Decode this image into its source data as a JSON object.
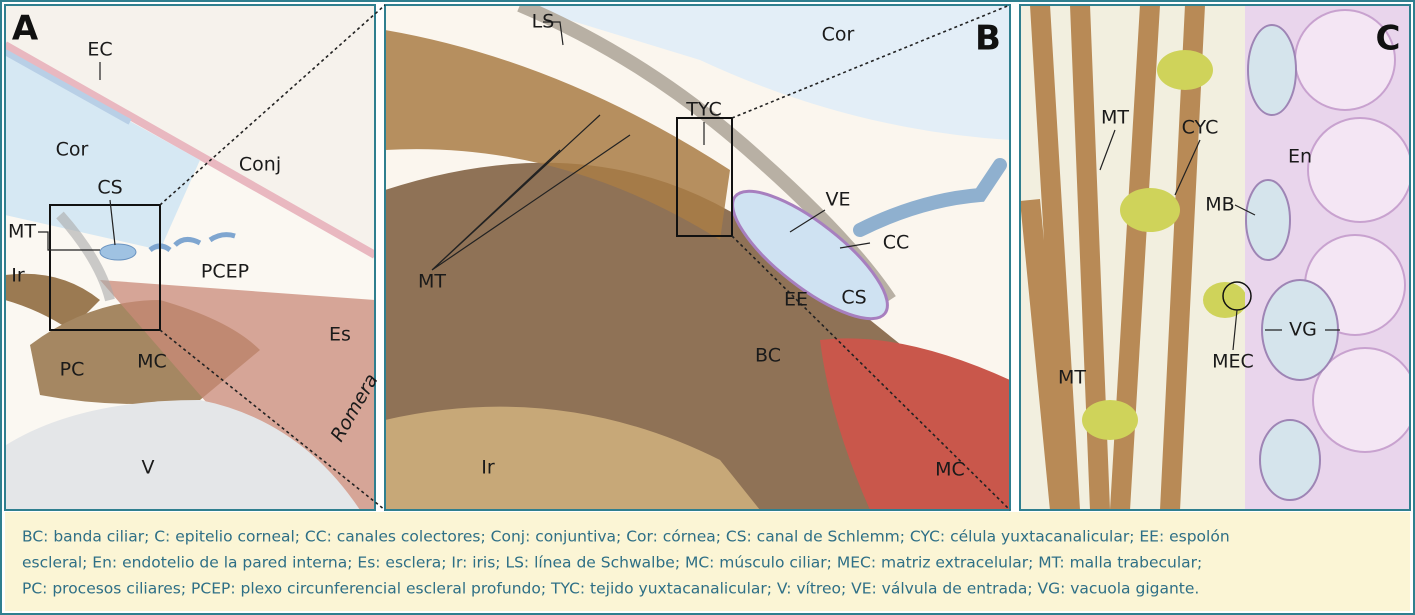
{
  "panels": [
    {
      "letter": "A",
      "labels": [
        "EC",
        "Cor",
        "CS",
        "Conj",
        "MT",
        "Ir",
        "PCEP",
        "Es",
        "PC",
        "MC",
        "V"
      ],
      "signature": "Romera"
    },
    {
      "letter": "B",
      "labels": [
        "LS",
        "Cor",
        "TYC",
        "VE",
        "CC",
        "MT",
        "EE",
        "CS",
        "BC",
        "Ir",
        "MC"
      ]
    },
    {
      "letter": "C",
      "labels": [
        "MT",
        "CYC",
        "En",
        "MB",
        "MEC",
        "VG",
        "MT"
      ]
    }
  ],
  "caption": [
    "BC: banda ciliar; C: epitelio corneal; CC: canales colectores; Conj: conjuntiva; Cor: córnea; CS: canal de Schlemm; CYC: célula yuxtacanalicular; EE: espolón",
    "escleral; En: endotelio de la pared interna; Es: esclera; Ir: iris; LS: línea de Schwalbe; MC: músculo ciliar; MEC: matriz extracelular; MT: malla trabecular;",
    "PC: procesos ciliares; PCEP: plexo circunferencial escleral profundo; TYC: tejido yuxtacanalicular; V: vítreo; VE: válvula de entrada; VG: vacuola gigante."
  ]
}
